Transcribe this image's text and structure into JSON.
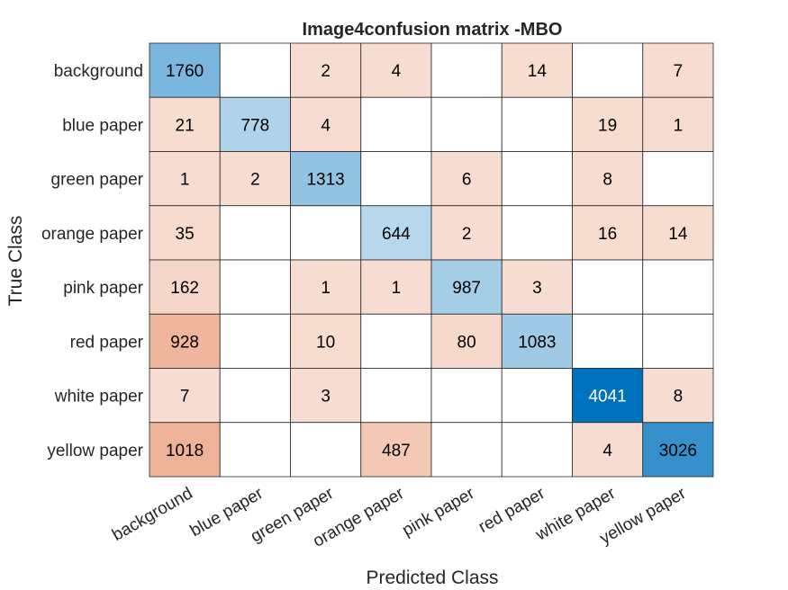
{
  "chart_data": {
    "type": "heatmap",
    "title": "Image4confusion matrix -MBO",
    "xlabel": "Predicted Class",
    "ylabel": "True Class",
    "classes": [
      "background",
      "blue paper",
      "green paper",
      "orange paper",
      "pink paper",
      "red paper",
      "white paper",
      "yellow paper"
    ],
    "matrix": [
      [
        1760,
        null,
        2,
        4,
        null,
        14,
        null,
        7
      ],
      [
        21,
        778,
        4,
        null,
        null,
        null,
        19,
        1
      ],
      [
        1,
        2,
        1313,
        null,
        6,
        null,
        8,
        null
      ],
      [
        35,
        null,
        null,
        644,
        2,
        null,
        16,
        14
      ],
      [
        162,
        null,
        1,
        1,
        987,
        3,
        null,
        null
      ],
      [
        928,
        null,
        10,
        null,
        80,
        1083,
        null,
        null
      ],
      [
        7,
        null,
        3,
        null,
        null,
        null,
        4041,
        8
      ],
      [
        1018,
        null,
        null,
        487,
        null,
        null,
        4,
        3026
      ]
    ],
    "colors": {
      "correct_base": "#ffffff",
      "correct_full": "#0072bd",
      "error_base": "#ffffff",
      "error_full": "#d95319",
      "grid_line": "#262626",
      "text_dark": "#000000",
      "text_light": "#ffffff"
    }
  }
}
